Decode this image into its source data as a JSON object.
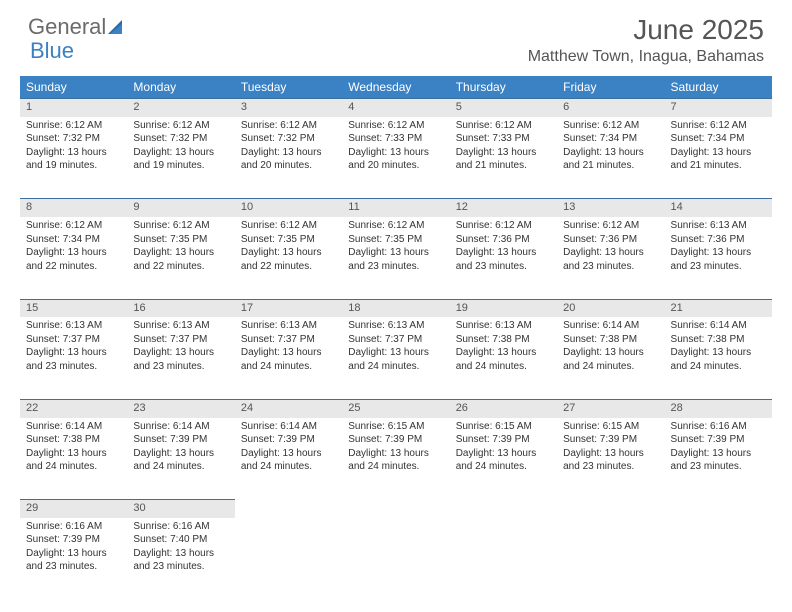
{
  "logo": {
    "part1": "General",
    "part2": "Blue"
  },
  "title": "June 2025",
  "location": "Matthew Town, Inagua, Bahamas",
  "colors": {
    "header_bg": "#3b82c4",
    "header_text": "#ffffff",
    "daynum_bg": "#e8e8e8",
    "daynum_border": "#3b6fa0",
    "body_text": "#333333",
    "title_text": "#555555"
  },
  "weekdays": [
    "Sunday",
    "Monday",
    "Tuesday",
    "Wednesday",
    "Thursday",
    "Friday",
    "Saturday"
  ],
  "weeks": [
    [
      {
        "n": "1",
        "sr": "Sunrise: 6:12 AM",
        "ss": "Sunset: 7:32 PM",
        "d1": "Daylight: 13 hours",
        "d2": "and 19 minutes."
      },
      {
        "n": "2",
        "sr": "Sunrise: 6:12 AM",
        "ss": "Sunset: 7:32 PM",
        "d1": "Daylight: 13 hours",
        "d2": "and 19 minutes."
      },
      {
        "n": "3",
        "sr": "Sunrise: 6:12 AM",
        "ss": "Sunset: 7:32 PM",
        "d1": "Daylight: 13 hours",
        "d2": "and 20 minutes."
      },
      {
        "n": "4",
        "sr": "Sunrise: 6:12 AM",
        "ss": "Sunset: 7:33 PM",
        "d1": "Daylight: 13 hours",
        "d2": "and 20 minutes."
      },
      {
        "n": "5",
        "sr": "Sunrise: 6:12 AM",
        "ss": "Sunset: 7:33 PM",
        "d1": "Daylight: 13 hours",
        "d2": "and 21 minutes."
      },
      {
        "n": "6",
        "sr": "Sunrise: 6:12 AM",
        "ss": "Sunset: 7:34 PM",
        "d1": "Daylight: 13 hours",
        "d2": "and 21 minutes."
      },
      {
        "n": "7",
        "sr": "Sunrise: 6:12 AM",
        "ss": "Sunset: 7:34 PM",
        "d1": "Daylight: 13 hours",
        "d2": "and 21 minutes."
      }
    ],
    [
      {
        "n": "8",
        "sr": "Sunrise: 6:12 AM",
        "ss": "Sunset: 7:34 PM",
        "d1": "Daylight: 13 hours",
        "d2": "and 22 minutes."
      },
      {
        "n": "9",
        "sr": "Sunrise: 6:12 AM",
        "ss": "Sunset: 7:35 PM",
        "d1": "Daylight: 13 hours",
        "d2": "and 22 minutes."
      },
      {
        "n": "10",
        "sr": "Sunrise: 6:12 AM",
        "ss": "Sunset: 7:35 PM",
        "d1": "Daylight: 13 hours",
        "d2": "and 22 minutes."
      },
      {
        "n": "11",
        "sr": "Sunrise: 6:12 AM",
        "ss": "Sunset: 7:35 PM",
        "d1": "Daylight: 13 hours",
        "d2": "and 23 minutes."
      },
      {
        "n": "12",
        "sr": "Sunrise: 6:12 AM",
        "ss": "Sunset: 7:36 PM",
        "d1": "Daylight: 13 hours",
        "d2": "and 23 minutes."
      },
      {
        "n": "13",
        "sr": "Sunrise: 6:12 AM",
        "ss": "Sunset: 7:36 PM",
        "d1": "Daylight: 13 hours",
        "d2": "and 23 minutes."
      },
      {
        "n": "14",
        "sr": "Sunrise: 6:13 AM",
        "ss": "Sunset: 7:36 PM",
        "d1": "Daylight: 13 hours",
        "d2": "and 23 minutes."
      }
    ],
    [
      {
        "n": "15",
        "sr": "Sunrise: 6:13 AM",
        "ss": "Sunset: 7:37 PM",
        "d1": "Daylight: 13 hours",
        "d2": "and 23 minutes."
      },
      {
        "n": "16",
        "sr": "Sunrise: 6:13 AM",
        "ss": "Sunset: 7:37 PM",
        "d1": "Daylight: 13 hours",
        "d2": "and 23 minutes."
      },
      {
        "n": "17",
        "sr": "Sunrise: 6:13 AM",
        "ss": "Sunset: 7:37 PM",
        "d1": "Daylight: 13 hours",
        "d2": "and 24 minutes."
      },
      {
        "n": "18",
        "sr": "Sunrise: 6:13 AM",
        "ss": "Sunset: 7:37 PM",
        "d1": "Daylight: 13 hours",
        "d2": "and 24 minutes."
      },
      {
        "n": "19",
        "sr": "Sunrise: 6:13 AM",
        "ss": "Sunset: 7:38 PM",
        "d1": "Daylight: 13 hours",
        "d2": "and 24 minutes."
      },
      {
        "n": "20",
        "sr": "Sunrise: 6:14 AM",
        "ss": "Sunset: 7:38 PM",
        "d1": "Daylight: 13 hours",
        "d2": "and 24 minutes."
      },
      {
        "n": "21",
        "sr": "Sunrise: 6:14 AM",
        "ss": "Sunset: 7:38 PM",
        "d1": "Daylight: 13 hours",
        "d2": "and 24 minutes."
      }
    ],
    [
      {
        "n": "22",
        "sr": "Sunrise: 6:14 AM",
        "ss": "Sunset: 7:38 PM",
        "d1": "Daylight: 13 hours",
        "d2": "and 24 minutes."
      },
      {
        "n": "23",
        "sr": "Sunrise: 6:14 AM",
        "ss": "Sunset: 7:39 PM",
        "d1": "Daylight: 13 hours",
        "d2": "and 24 minutes."
      },
      {
        "n": "24",
        "sr": "Sunrise: 6:14 AM",
        "ss": "Sunset: 7:39 PM",
        "d1": "Daylight: 13 hours",
        "d2": "and 24 minutes."
      },
      {
        "n": "25",
        "sr": "Sunrise: 6:15 AM",
        "ss": "Sunset: 7:39 PM",
        "d1": "Daylight: 13 hours",
        "d2": "and 24 minutes."
      },
      {
        "n": "26",
        "sr": "Sunrise: 6:15 AM",
        "ss": "Sunset: 7:39 PM",
        "d1": "Daylight: 13 hours",
        "d2": "and 24 minutes."
      },
      {
        "n": "27",
        "sr": "Sunrise: 6:15 AM",
        "ss": "Sunset: 7:39 PM",
        "d1": "Daylight: 13 hours",
        "d2": "and 23 minutes."
      },
      {
        "n": "28",
        "sr": "Sunrise: 6:16 AM",
        "ss": "Sunset: 7:39 PM",
        "d1": "Daylight: 13 hours",
        "d2": "and 23 minutes."
      }
    ],
    [
      {
        "n": "29",
        "sr": "Sunrise: 6:16 AM",
        "ss": "Sunset: 7:39 PM",
        "d1": "Daylight: 13 hours",
        "d2": "and 23 minutes."
      },
      {
        "n": "30",
        "sr": "Sunrise: 6:16 AM",
        "ss": "Sunset: 7:40 PM",
        "d1": "Daylight: 13 hours",
        "d2": "and 23 minutes."
      },
      null,
      null,
      null,
      null,
      null
    ]
  ]
}
